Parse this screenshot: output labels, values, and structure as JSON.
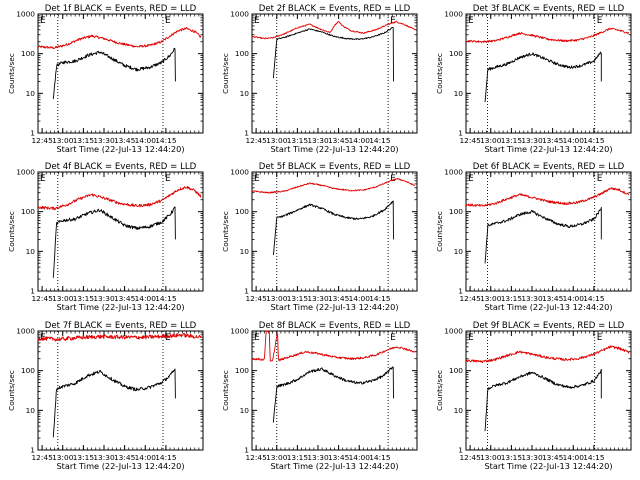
{
  "figure": {
    "background": "#ffffff"
  },
  "chart_data": [
    {
      "type": "line",
      "title": "Det 1f BLACK = Events, RED = LLD",
      "xlabel": "Start Time (22-Jul-13 12:44:20)",
      "ylabel": "Counts/sec",
      "x_ticks": [
        "12:45",
        "13:00",
        "13:15",
        "13:30",
        "13:45",
        "14:00",
        "14:15"
      ],
      "y_ticks": [
        "1",
        "10",
        "100",
        "1000"
      ],
      "xlim": [
        0,
        40
      ],
      "ylim": [
        1,
        1000
      ],
      "y_scale": "log",
      "markers": [
        {
          "x": 4.8,
          "label": ""
        },
        {
          "x": 30.3,
          "label": "E"
        }
      ],
      "corner_labels": [
        "E"
      ],
      "series": [
        {
          "color": "#e00000",
          "start": 0,
          "end": 39.5,
          "noise": 0.03,
          "x": [
            0,
            4,
            7,
            10,
            13,
            16,
            20,
            24,
            27,
            30,
            32,
            34,
            36,
            38,
            39.5
          ],
          "y": [
            150,
            140,
            170,
            230,
            280,
            240,
            180,
            150,
            160,
            200,
            280,
            380,
            430,
            360,
            260
          ]
        },
        {
          "color": "#000000",
          "start": 3.7,
          "end": 33.3,
          "noise": 0.04,
          "dropline": true,
          "x": [
            3.7,
            4.5,
            6,
            9,
            12,
            15,
            18,
            21,
            24,
            27,
            30,
            32,
            33.3
          ],
          "y": [
            7,
            50,
            60,
            65,
            90,
            110,
            75,
            50,
            40,
            45,
            60,
            90,
            140
          ]
        }
      ]
    },
    {
      "type": "line",
      "title": "Det 2f BLACK = Events, RED = LLD",
      "xlabel": "Start Time (22-Jul-13 12:44:20)",
      "ylabel": "Counts/sec",
      "x_ticks": [
        "12:45",
        "13:00",
        "13:15",
        "13:30",
        "13:45",
        "14:00",
        "14:15"
      ],
      "y_ticks": [
        "1",
        "10",
        "100",
        "1000"
      ],
      "xlim": [
        0,
        40
      ],
      "ylim": [
        1,
        1000
      ],
      "y_scale": "log",
      "markers": [
        {
          "x": 6.0,
          "label": ""
        },
        {
          "x": 33.0,
          "label": "E"
        }
      ],
      "corner_labels": [
        "E"
      ],
      "series": [
        {
          "color": "#e00000",
          "start": 0,
          "end": 39.5,
          "noise": 0.015,
          "x": [
            0,
            3,
            5,
            8,
            11,
            14,
            17,
            19,
            20,
            21,
            22,
            24,
            27,
            30,
            33,
            35,
            37,
            39.5
          ],
          "y": [
            270,
            240,
            250,
            320,
            450,
            550,
            400,
            340,
            520,
            650,
            500,
            380,
            330,
            400,
            550,
            640,
            540,
            400
          ]
        },
        {
          "color": "#000000",
          "start": 5.2,
          "end": 34.3,
          "noise": 0.015,
          "dropline": true,
          "x": [
            5.2,
            6,
            8,
            11,
            14,
            17,
            20,
            23,
            26,
            29,
            32,
            34.3
          ],
          "y": [
            25,
            230,
            260,
            330,
            420,
            350,
            270,
            240,
            230,
            260,
            330,
            470
          ]
        }
      ]
    },
    {
      "type": "line",
      "title": "Det 3f BLACK = Events, RED = LLD",
      "xlabel": "Start Time (22-Jul-13 12:44:20)",
      "ylabel": "Counts/sec",
      "x_ticks": [
        "12:45",
        "13:00",
        "13:15",
        "13:30",
        "13:45",
        "14:00",
        "14:15"
      ],
      "y_ticks": [
        "1",
        "10",
        "100",
        "1000"
      ],
      "xlim": [
        0,
        40
      ],
      "ylim": [
        1,
        1000
      ],
      "y_scale": "log",
      "markers": [
        {
          "x": 5.2,
          "label": ""
        },
        {
          "x": 31.2,
          "label": "E"
        }
      ],
      "corner_labels": [
        "E"
      ],
      "series": [
        {
          "color": "#e00000",
          "start": 0,
          "end": 39.5,
          "noise": 0.025,
          "x": [
            0,
            4,
            7,
            10,
            13,
            16,
            20,
            24,
            27,
            30,
            33,
            35,
            37,
            39.5
          ],
          "y": [
            210,
            200,
            210,
            260,
            330,
            290,
            230,
            210,
            220,
            260,
            350,
            430,
            390,
            330
          ]
        },
        {
          "color": "#000000",
          "start": 4.6,
          "end": 32.8,
          "noise": 0.035,
          "dropline": true,
          "x": [
            4.6,
            5.3,
            7,
            10,
            13,
            16,
            19,
            22,
            25,
            28,
            31,
            32.8
          ],
          "y": [
            6,
            40,
            45,
            55,
            80,
            100,
            75,
            55,
            45,
            50,
            65,
            110
          ]
        }
      ]
    },
    {
      "type": "line",
      "title": "Det 4f BLACK = Events, RED = LLD",
      "xlabel": "Start Time (22-Jul-13 12:44:20)",
      "ylabel": "Counts/sec",
      "x_ticks": [
        "12:45",
        "13:00",
        "13:15",
        "13:30",
        "13:45",
        "14:00",
        "14:15"
      ],
      "y_ticks": [
        "1",
        "10",
        "100",
        "1000"
      ],
      "xlim": [
        0,
        40
      ],
      "ylim": [
        1,
        1000
      ],
      "y_scale": "log",
      "markers": [
        {
          "x": 4.8,
          "label": ""
        },
        {
          "x": 30.3,
          "label": "E"
        }
      ],
      "corner_labels": [
        "E"
      ],
      "series": [
        {
          "color": "#e00000",
          "start": 0,
          "end": 39.5,
          "noise": 0.035,
          "x": [
            0,
            4,
            7,
            10,
            13,
            16,
            20,
            24,
            27,
            30,
            32,
            34,
            36,
            38,
            39.5
          ],
          "y": [
            130,
            120,
            150,
            210,
            270,
            220,
            160,
            140,
            150,
            190,
            260,
            360,
            420,
            340,
            240
          ]
        },
        {
          "color": "#000000",
          "start": 3.7,
          "end": 33.3,
          "noise": 0.04,
          "dropline": true,
          "x": [
            3.7,
            4.5,
            6,
            9,
            12,
            15,
            18,
            21,
            24,
            27,
            30,
            32,
            33.3
          ],
          "y": [
            2,
            50,
            60,
            65,
            90,
            110,
            70,
            45,
            38,
            42,
            55,
            85,
            130
          ]
        }
      ]
    },
    {
      "type": "line",
      "title": "Det 5f BLACK = Events, RED = LLD",
      "xlabel": "Start Time (22-Jul-13 12:44:20)",
      "ylabel": "Counts/sec",
      "x_ticks": [
        "12:45",
        "13:00",
        "13:15",
        "13:30",
        "13:45",
        "14:00",
        "14:15"
      ],
      "y_ticks": [
        "1",
        "10",
        "100",
        "1000"
      ],
      "xlim": [
        0,
        40
      ],
      "ylim": [
        1,
        1000
      ],
      "y_scale": "log",
      "markers": [
        {
          "x": 6.0,
          "label": ""
        },
        {
          "x": 33.0,
          "label": "E"
        }
      ],
      "corner_labels": [
        "E"
      ],
      "series": [
        {
          "color": "#e00000",
          "start": 0,
          "end": 39.5,
          "noise": 0.015,
          "x": [
            0,
            4,
            8,
            11,
            14,
            17,
            20,
            24,
            27,
            30,
            33,
            35,
            37,
            39.5
          ],
          "y": [
            330,
            300,
            330,
            420,
            520,
            460,
            380,
            340,
            350,
            420,
            560,
            680,
            600,
            450
          ]
        },
        {
          "color": "#000000",
          "start": 5.2,
          "end": 34.3,
          "noise": 0.025,
          "dropline": true,
          "x": [
            5.2,
            6,
            8,
            11,
            14,
            17,
            20,
            23,
            26,
            29,
            32,
            34.3
          ],
          "y": [
            8,
            70,
            80,
            110,
            150,
            120,
            85,
            70,
            65,
            75,
            110,
            190
          ]
        }
      ]
    },
    {
      "type": "line",
      "title": "Det 6f BLACK = Events, RED = LLD",
      "xlabel": "Start Time (22-Jul-13 12:44:20)",
      "ylabel": "Counts/sec",
      "x_ticks": [
        "12:45",
        "13:00",
        "13:15",
        "13:30",
        "13:45",
        "14:00",
        "14:15"
      ],
      "y_ticks": [
        "1",
        "10",
        "100",
        "1000"
      ],
      "xlim": [
        0,
        40
      ],
      "ylim": [
        1,
        1000
      ],
      "y_scale": "log",
      "markers": [
        {
          "x": 5.2,
          "label": ""
        },
        {
          "x": 31.2,
          "label": "E"
        }
      ],
      "corner_labels": [
        "E"
      ],
      "series": [
        {
          "color": "#e00000",
          "start": 0,
          "end": 39.5,
          "noise": 0.03,
          "x": [
            0,
            4,
            7,
            10,
            13,
            16,
            20,
            24,
            27,
            30,
            33,
            35,
            37,
            39.5
          ],
          "y": [
            150,
            140,
            160,
            210,
            270,
            230,
            180,
            160,
            170,
            210,
            290,
            390,
            360,
            270
          ]
        },
        {
          "color": "#000000",
          "start": 4.6,
          "end": 32.8,
          "noise": 0.035,
          "dropline": true,
          "x": [
            4.6,
            5.3,
            7,
            10,
            13,
            16,
            19,
            22,
            25,
            28,
            31,
            32.8
          ],
          "y": [
            5,
            45,
            50,
            60,
            85,
            100,
            70,
            50,
            42,
            48,
            65,
            120
          ]
        }
      ]
    },
    {
      "type": "line",
      "title": "Det 7f BLACK = Events, RED = LLD",
      "xlabel": "Start Time (22-Jul-13 12:44:20)",
      "ylabel": "Counts/sec",
      "x_ticks": [
        "12:45",
        "13:00",
        "13:15",
        "13:30",
        "13:45",
        "14:00",
        "14:15"
      ],
      "y_ticks": [
        "1",
        "10",
        "100",
        "1000"
      ],
      "xlim": [
        0,
        40
      ],
      "ylim": [
        1,
        1000
      ],
      "y_scale": "log",
      "markers": [
        {
          "x": 4.8,
          "label": ""
        },
        {
          "x": 30.3,
          "label": "E"
        }
      ],
      "corner_labels": [
        "E"
      ],
      "series": [
        {
          "color": "#e00000",
          "start": 0,
          "end": 39.5,
          "noise": 0.05,
          "x": [
            0,
            5,
            10,
            15,
            20,
            25,
            30,
            33,
            35,
            37,
            39.5
          ],
          "y": [
            650,
            620,
            680,
            720,
            700,
            690,
            730,
            760,
            800,
            740,
            700
          ]
        },
        {
          "color": "#000000",
          "start": 3.7,
          "end": 33.3,
          "noise": 0.04,
          "dropline": true,
          "x": [
            3.7,
            4.5,
            6,
            9,
            12,
            15,
            18,
            21,
            24,
            27,
            30,
            32,
            33.3
          ],
          "y": [
            2,
            35,
            40,
            48,
            75,
            95,
            60,
            40,
            33,
            38,
            50,
            75,
            110
          ]
        }
      ]
    },
    {
      "type": "line",
      "title": "Det 8f BLACK = Events, RED = LLD",
      "xlabel": "Start Time (22-Jul-13 12:44:20)",
      "ylabel": "Counts/sec",
      "x_ticks": [
        "12:45",
        "13:00",
        "13:15",
        "13:30",
        "13:45",
        "14:00",
        "14:15"
      ],
      "y_ticks": [
        "1",
        "10",
        "100",
        "1000"
      ],
      "xlim": [
        0,
        40
      ],
      "ylim": [
        1,
        1000
      ],
      "y_scale": "log",
      "markers": [
        {
          "x": 6.0,
          "label": ""
        },
        {
          "x": 33.0,
          "label": "E"
        }
      ],
      "corner_labels": [
        "E"
      ],
      "series": [
        {
          "color": "#e00000",
          "start": 0,
          "end": 39.5,
          "noise": 0.025,
          "x": [
            0,
            3,
            3.4,
            3.6,
            4.2,
            4.4,
            5,
            6.2,
            6.4,
            7,
            10,
            13,
            16,
            20,
            24,
            27,
            30,
            33,
            35,
            37,
            39.5
          ],
          "y": [
            200,
            190,
            1000,
            1000,
            1000,
            170,
            175,
            1000,
            180,
            190,
            240,
            300,
            270,
            220,
            200,
            210,
            250,
            340,
            400,
            360,
            290
          ]
        },
        {
          "color": "#000000",
          "start": 5.2,
          "end": 34.3,
          "noise": 0.035,
          "dropline": true,
          "x": [
            5.2,
            6,
            8,
            11,
            14,
            17,
            20,
            23,
            26,
            29,
            32,
            34.3
          ],
          "y": [
            5,
            40,
            45,
            60,
            95,
            110,
            75,
            55,
            48,
            55,
            75,
            130
          ]
        }
      ]
    },
    {
      "type": "line",
      "title": "Det 9f BLACK = Events, RED = LLD",
      "xlabel": "Start Time (22-Jul-13 12:44:20)",
      "ylabel": "Counts/sec",
      "x_ticks": [
        "12:45",
        "13:00",
        "13:15",
        "13:30",
        "13:45",
        "14:00",
        "14:15"
      ],
      "y_ticks": [
        "1",
        "10",
        "100",
        "1000"
      ],
      "xlim": [
        0,
        40
      ],
      "ylim": [
        1,
        1000
      ],
      "y_scale": "log",
      "markers": [
        {
          "x": 5.2,
          "label": ""
        },
        {
          "x": 31.2,
          "label": "E"
        }
      ],
      "corner_labels": [
        "E"
      ],
      "series": [
        {
          "color": "#e00000",
          "start": 0,
          "end": 39.5,
          "noise": 0.03,
          "x": [
            0,
            4,
            7,
            10,
            13,
            16,
            20,
            24,
            27,
            30,
            33,
            35,
            37,
            39.5
          ],
          "y": [
            180,
            170,
            190,
            240,
            300,
            260,
            210,
            190,
            200,
            240,
            320,
            400,
            370,
            290
          ]
        },
        {
          "color": "#000000",
          "start": 4.6,
          "end": 32.8,
          "noise": 0.035,
          "dropline": true,
          "x": [
            4.6,
            5.3,
            7,
            10,
            13,
            16,
            19,
            22,
            25,
            28,
            31,
            32.8
          ],
          "y": [
            3,
            35,
            42,
            50,
            70,
            90,
            65,
            45,
            38,
            42,
            55,
            100
          ]
        }
      ]
    }
  ]
}
